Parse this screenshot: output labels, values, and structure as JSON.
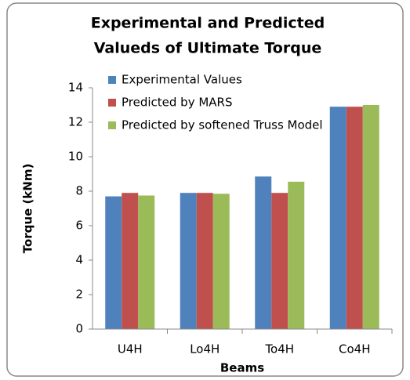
{
  "chart_data": {
    "type": "bar",
    "title": [
      "Experimental and Predicted",
      "Valueds of Ultimate Torque"
    ],
    "x_label": "Beams",
    "y_label": "Torque (kNm)",
    "categories": [
      "U4H",
      "Lo4H",
      "To4H",
      "Co4H"
    ],
    "series": [
      {
        "name": "Experimental Values",
        "color": "#4f81bd",
        "values": [
          7.7,
          7.9,
          8.85,
          12.9
        ]
      },
      {
        "name": "Predicted by MARS",
        "color": "#c0504d",
        "values": [
          7.9,
          7.9,
          7.9,
          12.9
        ]
      },
      {
        "name": "Predicted by softened Truss Model",
        "color": "#9bbb59",
        "values": [
          7.75,
          7.85,
          8.55,
          13.0
        ]
      }
    ],
    "ylim": [
      0,
      14
    ],
    "yticks": [
      0,
      2,
      4,
      6,
      8,
      10,
      12,
      14
    ],
    "legend": "top-left",
    "grid": false
  }
}
